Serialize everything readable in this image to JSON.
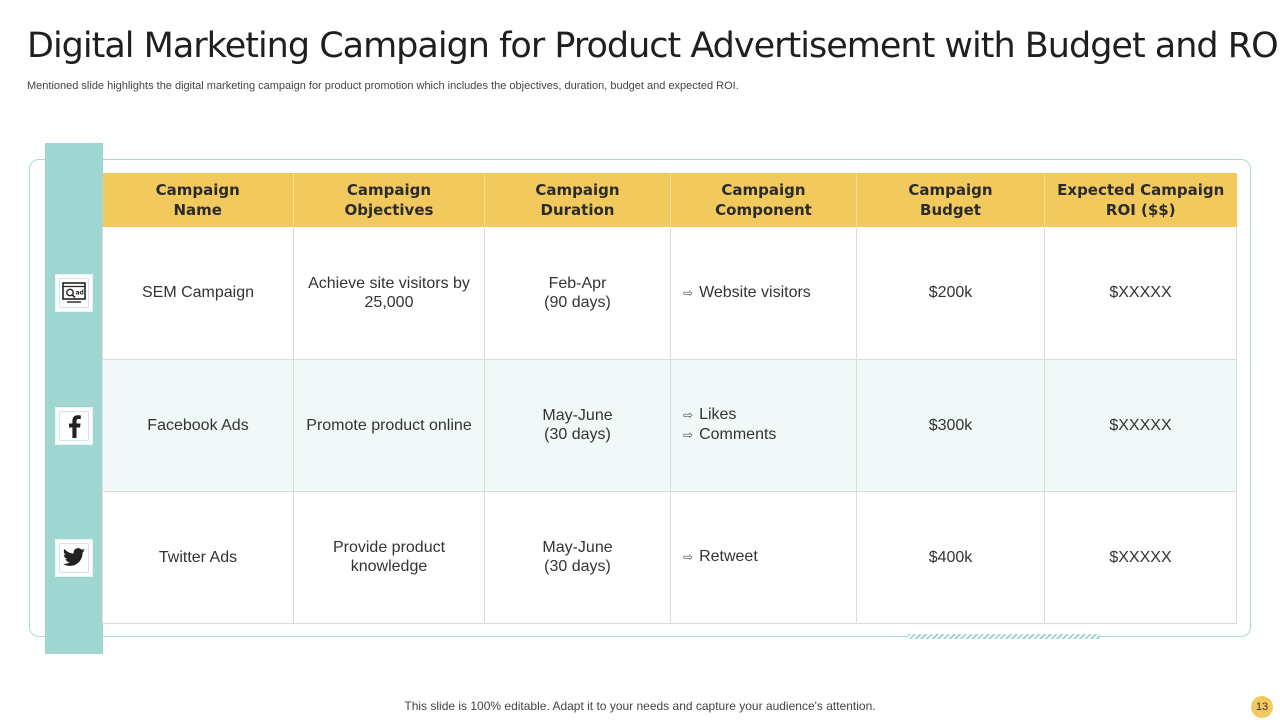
{
  "slide": {
    "title": "Digital Marketing Campaign for Product Advertisement with Budget and ROI",
    "subtitle": "Mentioned slide highlights the digital marketing campaign for product promotion which includes the objectives, duration, budget and expected ROI.",
    "footer": "This slide is 100% editable. Adapt it to your needs and capture your audience's attention.",
    "page_number": "13"
  },
  "colors": {
    "header_fill": "#f2c95c",
    "teal_accent": "#9fd6d2",
    "alt_row": "#f1f8f8"
  },
  "table": {
    "headers": [
      [
        "Campaign",
        "Name"
      ],
      [
        "Campaign",
        "Objectives"
      ],
      [
        "Campaign",
        "Duration"
      ],
      [
        "Campaign",
        "Component"
      ],
      [
        "Campaign",
        "Budget"
      ],
      [
        "Expected Campaign",
        "ROI ($$)"
      ]
    ],
    "rows": [
      {
        "icon": "ad-search-icon",
        "name": "SEM Campaign",
        "objective": [
          "Achieve site visitors by",
          "25,000"
        ],
        "duration": [
          "Feb-Apr",
          "(90 days)"
        ],
        "components": [
          "Website visitors"
        ],
        "budget": "$200k",
        "roi": "$XXXXX"
      },
      {
        "icon": "facebook-icon",
        "name": "Facebook Ads",
        "objective": [
          "Promote product online"
        ],
        "duration": [
          "May-June",
          "(30 days)"
        ],
        "components": [
          "Likes",
          "Comments"
        ],
        "budget": "$300k",
        "roi": "$XXXXX"
      },
      {
        "icon": "twitter-icon",
        "name": "Twitter Ads",
        "objective": [
          "Provide product",
          "knowledge"
        ],
        "duration": [
          "May-June",
          "(30 days)"
        ],
        "components": [
          "Retweet"
        ],
        "budget": "$400k",
        "roi": "$XXXXX"
      }
    ]
  }
}
